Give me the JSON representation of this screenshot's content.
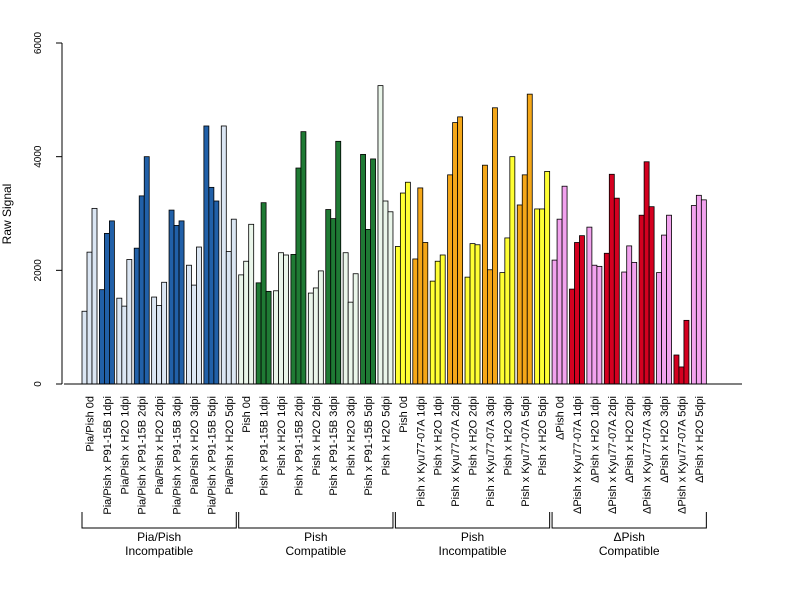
{
  "chart_data": {
    "type": "bar",
    "ylabel": "Raw Signal",
    "ylim": [
      0,
      6000
    ],
    "yticks": [
      0,
      2000,
      4000,
      6000
    ],
    "categories": [
      "Pia/Pish 0d",
      "Pia/Pish x P91-15B 1dpi",
      "Pia/Pish x H2O 1dpi",
      "Pia/Pish x P91-15B 2dpi",
      "Pia/Pish x H2O 2dpi",
      "Pia/Pish x P91-15B 3dpi",
      "Pia/Pish x H2O 3dpi",
      "Pia/Pish x P91-15B 5dpi",
      "Pia/Pish x H2O 5dpi",
      "Pish 0d",
      "Pish x P91-15B 1dpi",
      "Pish x H2O 1dpi",
      "Pish x P91-15B 2dpi",
      "Pish x H2O 2dpi",
      "Pish x P91-15B 3dpi",
      "Pish x H2O 3dpi",
      "Pish x P91-15B 5dpi",
      "Pish x H2O 5dpi",
      "Pish 0d",
      "Pish x Kyu77-07A 1dpi",
      "Pish x H2O 1dpi",
      "Pish x Kyu77-07A 2dpi",
      "Pish x H2O 2dpi",
      "Pish x Kyu77-07A 3dpi",
      "Pish x H2O 3dpi",
      "Pish x Kyu77-07A 5dpi",
      "Pish x H2O 5dpi",
      "ΔPish 0d",
      "ΔPish x Kyu77-07A 1dpi",
      "ΔPish x H2O 1dpi",
      "ΔPish x Kyu77-07A 2dpi",
      "ΔPish x H2O 2dpi",
      "ΔPish x Kyu77-07A 3dpi",
      "ΔPish x H2O 3dpi",
      "ΔPish x Kyu77-07A 5dpi",
      "ΔPish x H2O 5dpi"
    ],
    "values": [
      [
        1280,
        2320,
        3090
      ],
      [
        1660,
        2650,
        2870
      ],
      [
        1510,
        1370,
        2190
      ],
      [
        2390,
        3310,
        4000
      ],
      [
        1530,
        1380,
        1790
      ],
      [
        3060,
        2790,
        2870
      ],
      [
        2090,
        1740,
        2410
      ],
      [
        4540,
        3460,
        3220
      ],
      [
        4540,
        2330,
        2900
      ],
      [
        1920,
        2160,
        2810
      ],
      [
        1780,
        3190,
        1630
      ],
      [
        1640,
        2310,
        2270
      ],
      [
        2280,
        3800,
        4440
      ],
      [
        1600,
        1690,
        1990
      ],
      [
        3070,
        2910,
        4270
      ],
      [
        2310,
        1440,
        1940
      ],
      [
        4040,
        2720,
        3960
      ],
      [
        5250,
        3220,
        3030
      ],
      [
        2420,
        3360,
        3550
      ],
      [
        2200,
        3450,
        2490
      ],
      [
        1810,
        2160,
        2270
      ],
      [
        3680,
        4600,
        4700
      ],
      [
        1880,
        2470,
        2450
      ],
      [
        3850,
        2010,
        4860
      ],
      [
        1960,
        2570,
        4000
      ],
      [
        3150,
        3680,
        5100
      ],
      [
        3080,
        3080,
        3740
      ],
      [
        2180,
        2900,
        3480
      ],
      [
        1670,
        2490,
        2610
      ],
      [
        2760,
        2090,
        2070
      ],
      [
        2300,
        3690,
        3270
      ],
      [
        1970,
        2430,
        2140
      ],
      [
        2970,
        3910,
        3120
      ],
      [
        1960,
        2620,
        2970
      ],
      [
        510,
        300,
        1120
      ],
      [
        3140,
        3320,
        3240
      ]
    ],
    "groups": [
      {
        "line1": "Pia/Pish",
        "line2": "Incompatible",
        "start": 0,
        "end": 8,
        "color": "#2160a8",
        "light": "#dbe6f3"
      },
      {
        "line1": "Pish",
        "line2": "Compatible",
        "start": 9,
        "end": 17,
        "color": "#1f7a34",
        "light": "#eaf6ea"
      },
      {
        "line1": "Pish",
        "line2": "Incompatible",
        "start": 18,
        "end": 26,
        "color": "#f5a718",
        "light": "#ffff33"
      },
      {
        "line1": "ΔPish",
        "line2": "Compatible",
        "start": 27,
        "end": 35,
        "color": "#d40020",
        "light": "#f2a2ee"
      }
    ],
    "grid": false,
    "legend": "none"
  }
}
